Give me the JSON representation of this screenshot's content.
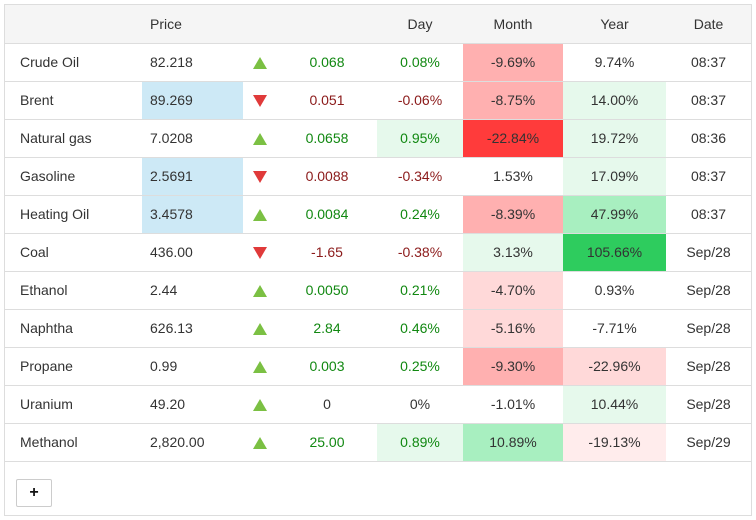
{
  "header": {
    "name": "",
    "price": "Price",
    "arrow": "",
    "change": "",
    "day": "Day",
    "month": "Month",
    "year": "Year",
    "date": "Date"
  },
  "colors": {
    "price_highlight": "#cde9f6",
    "red_strong": "#ff3b3b",
    "red_medium": "#ffb0b0",
    "red_light": "#ffd9d9",
    "red_faint": "#ffecec",
    "green_strong": "#2ecc5e",
    "green_medium": "#a8efc0",
    "green_light": "#e6f9ec",
    "positive_text": "#118811",
    "negative_text": "#8b1a1a"
  },
  "rows": [
    {
      "name": "Crude Oil",
      "price": "82.218",
      "direction": "up",
      "change": "0.068",
      "day": "0.08%",
      "month": "-9.69%",
      "year": "9.74%",
      "date": "08:37"
    },
    {
      "name": "Brent",
      "price": "89.269",
      "direction": "down",
      "change": "0.051",
      "day": "-0.06%",
      "month": "-8.75%",
      "year": "14.00%",
      "date": "08:37"
    },
    {
      "name": "Natural gas",
      "price": "7.0208",
      "direction": "up",
      "change": "0.0658",
      "day": "0.95%",
      "month": "-22.84%",
      "year": "19.72%",
      "date": "08:36"
    },
    {
      "name": "Gasoline",
      "price": "2.5691",
      "direction": "down",
      "change": "0.0088",
      "day": "-0.34%",
      "month": "1.53%",
      "year": "17.09%",
      "date": "08:37"
    },
    {
      "name": "Heating Oil",
      "price": "3.4578",
      "direction": "up",
      "change": "0.0084",
      "day": "0.24%",
      "month": "-8.39%",
      "year": "47.99%",
      "date": "08:37"
    },
    {
      "name": "Coal",
      "price": "436.00",
      "direction": "down",
      "change": "-1.65",
      "day": "-0.38%",
      "month": "3.13%",
      "year": "105.66%",
      "date": "Sep/28"
    },
    {
      "name": "Ethanol",
      "price": "2.44",
      "direction": "up",
      "change": "0.0050",
      "day": "0.21%",
      "month": "-4.70%",
      "year": "0.93%",
      "date": "Sep/28"
    },
    {
      "name": "Naphtha",
      "price": "626.13",
      "direction": "up",
      "change": "2.84",
      "day": "0.46%",
      "month": "-5.16%",
      "year": "-7.71%",
      "date": "Sep/28"
    },
    {
      "name": "Propane",
      "price": "0.99",
      "direction": "up",
      "change": "0.003",
      "day": "0.25%",
      "month": "-9.30%",
      "year": "-22.96%",
      "date": "Sep/28"
    },
    {
      "name": "Uranium",
      "price": "49.20",
      "direction": "up",
      "change": "0",
      "day": "0%",
      "month": "-1.01%",
      "year": "10.44%",
      "date": "Sep/28"
    },
    {
      "name": "Methanol",
      "price": "2,820.00",
      "direction": "up",
      "change": "25.00",
      "day": "0.89%",
      "month": "10.89%",
      "year": "-19.13%",
      "date": "Sep/29"
    }
  ],
  "add_button": {
    "label": "+"
  }
}
